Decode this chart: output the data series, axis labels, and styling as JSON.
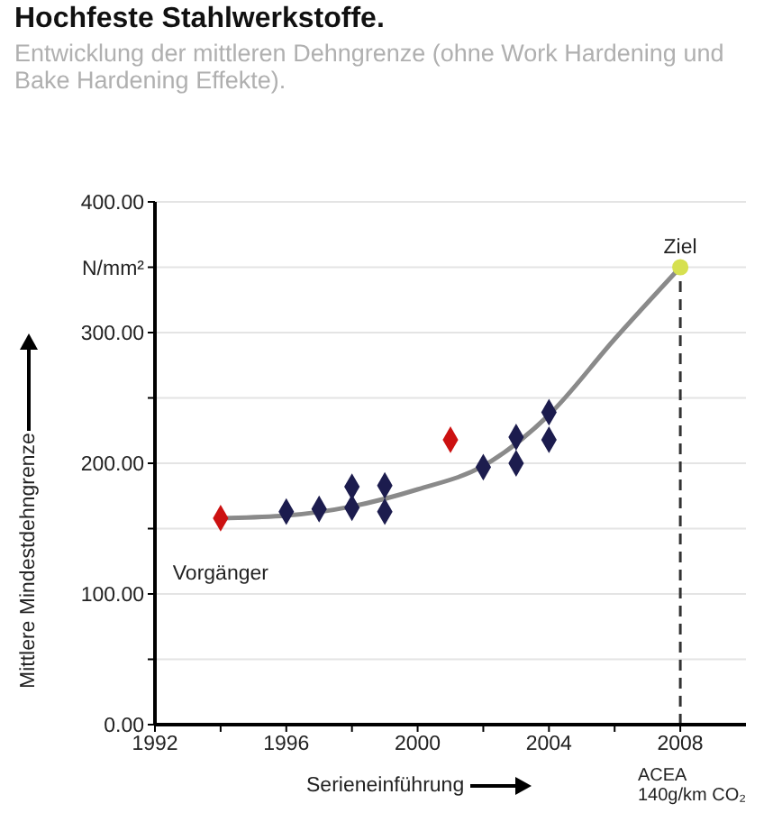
{
  "chart_data": {
    "type": "scatter",
    "title": "Hochfeste Stahlwerkstoffe.",
    "subtitle": "Entwicklung der mittleren Dehngrenze (ohne Work Hardening und Bake Hardening Effekte).",
    "xlabel": "Serieneinführung",
    "ylabel": "Mittlere Mindestdehngrenze",
    "xlim": [
      1992,
      2010
    ],
    "xticks": [
      1992,
      {
        "value": 1994,
        "label": null
      },
      1996,
      {
        "value": 1998,
        "label": null
      },
      2000,
      {
        "value": 2002,
        "label": null
      },
      2004,
      {
        "value": 2006,
        "label": null
      },
      2008
    ],
    "ylim": [
      0,
      400
    ],
    "yticks": [
      {
        "value": 0,
        "label": "0.00"
      },
      {
        "value": 50,
        "label": null
      },
      {
        "value": 100,
        "label": "100.00"
      },
      {
        "value": 150,
        "label": null
      },
      {
        "value": 200,
        "label": "200.00"
      },
      {
        "value": 250,
        "label": null
      },
      {
        "value": 300,
        "label": "300.00"
      },
      {
        "value": 350,
        "label": "N/mm²"
      },
      {
        "value": 400,
        "label": "400.00"
      }
    ],
    "grid": "y",
    "series": [
      {
        "type": "line",
        "color": "#8a8a8a",
        "marker": "none",
        "line_style": "solid",
        "x": [
          1994,
          1996,
          1998,
          2000,
          2002,
          2004,
          2006,
          2008
        ],
        "values": [
          158,
          160,
          167,
          180,
          198,
          237,
          295,
          350
        ]
      },
      {
        "type": "scatter",
        "color": "#1c1c4e",
        "marker": "diamond",
        "x": [
          1996,
          1997,
          1998,
          1998,
          1999,
          1999,
          2002,
          2003,
          2003,
          2004,
          2004
        ],
        "values": [
          163,
          165,
          166,
          182,
          163,
          183,
          197,
          200,
          220,
          218,
          239
        ]
      },
      {
        "type": "scatter",
        "color": "#cc1111",
        "marker": "diamond",
        "x": [
          1994,
          2001
        ],
        "values": [
          158,
          218
        ]
      },
      {
        "type": "scatter",
        "color": "#d6e050",
        "marker": "circle",
        "x": [
          2008
        ],
        "values": [
          350
        ]
      }
    ],
    "ref_lines": [
      {
        "axis": "x",
        "value": 2008,
        "color": "#333333",
        "line_style": "dashed"
      }
    ],
    "annotations": [
      {
        "text": "Vorgänger",
        "x": 1994,
        "y": 158
      },
      {
        "text": "Ziel",
        "x": 2008,
        "y": 350
      },
      "ACEA\n140g/km CO₂"
    ]
  }
}
